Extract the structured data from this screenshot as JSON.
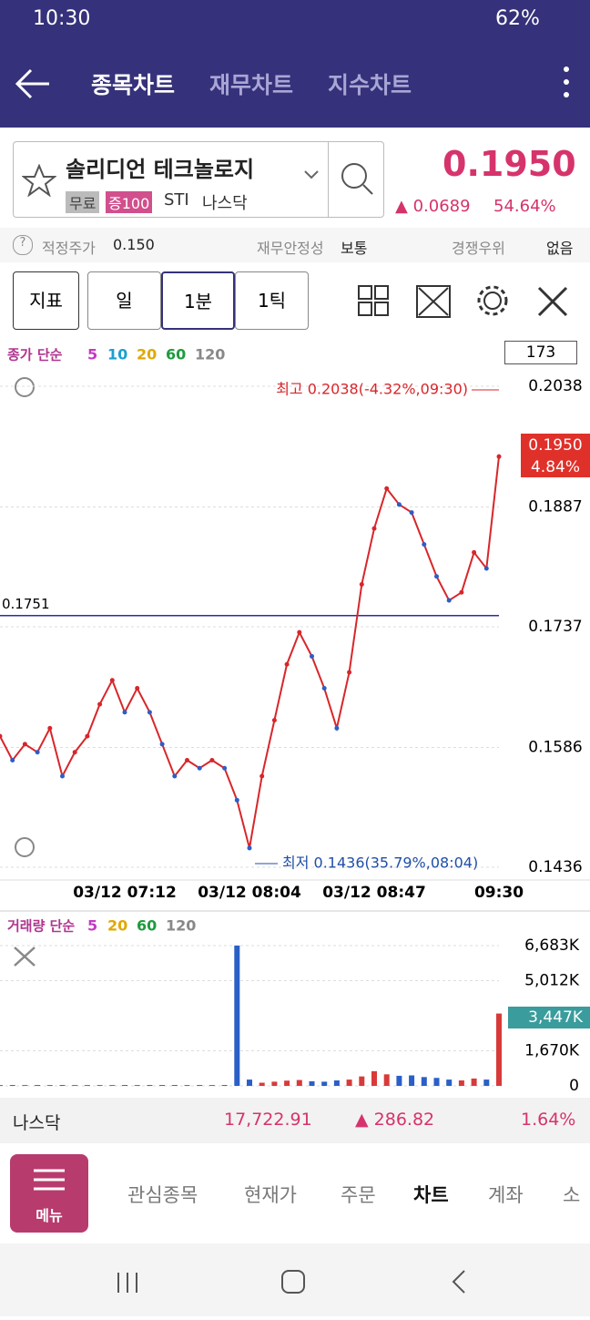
{
  "status_bar": {
    "time": "10:30",
    "battery": "62%"
  },
  "tabs": {
    "active": "종목차트",
    "items": [
      "재무차트",
      "지수차트"
    ]
  },
  "stock": {
    "name": "솔리디언 테크놀로지",
    "tags": [
      "무료",
      "증100"
    ],
    "code": "STI",
    "market": "나스닥",
    "price": "0.1950",
    "change": "0.0689",
    "change_pct": "54.64%"
  },
  "info_row": {
    "fair_price_label": "적정주가",
    "fair_price": "0.150",
    "stability_label": "재무안정성",
    "stability": "보통",
    "moat_label": "경쟁우위",
    "moat": "없음"
  },
  "toolbar": {
    "indicator": "지표",
    "periods": [
      "일",
      "1분",
      "1틱"
    ]
  },
  "price_chart": {
    "type": "line",
    "legend_title": "종가 단순",
    "ma_periods": [
      "5",
      "10",
      "20",
      "60",
      "120"
    ],
    "ma_colors": [
      "#c23bc2",
      "#1a9fd0",
      "#e0a800",
      "#1f9a3e",
      "#888888"
    ],
    "count": "173",
    "high_label": "최고 0.2038(-4.32%,09:30)",
    "low_label": "최저 0.1436(35.79%,08:04)",
    "current_tag": "0.1950",
    "current_pct": "4.84%",
    "ref_line": 0.1751,
    "categories": [
      null,
      null,
      null,
      null,
      null,
      null,
      null,
      null,
      null,
      null,
      "03/12 07:12",
      null,
      null,
      null,
      null,
      null,
      null,
      null,
      null,
      null,
      "03/12 08:04",
      null,
      null,
      null,
      null,
      null,
      null,
      null,
      null,
      null,
      "03/12 08:47",
      null,
      null,
      null,
      null,
      null,
      null,
      null,
      null,
      null,
      "09:30"
    ],
    "values": [
      0.16,
      0.157,
      0.159,
      0.158,
      0.161,
      0.155,
      0.158,
      0.16,
      0.164,
      0.167,
      0.163,
      0.166,
      0.163,
      0.159,
      0.155,
      0.157,
      0.156,
      0.157,
      0.156,
      0.152,
      0.146,
      0.155,
      0.162,
      0.169,
      0.173,
      0.17,
      0.166,
      0.161,
      0.168,
      0.179,
      0.186,
      0.191,
      0.189,
      0.188,
      0.184,
      0.18,
      0.177,
      0.178,
      0.183,
      0.181,
      0.195
    ],
    "color": "#d8262a",
    "ylim": [
      0.1436,
      0.2038
    ],
    "yticks": [
      0.2038,
      0.1887,
      0.1737,
      0.1586,
      0.1436
    ],
    "grid": true
  },
  "volume_chart": {
    "type": "bar",
    "legend_title": "거래량 단순",
    "ma_periods": [
      "5",
      "20",
      "60",
      "120"
    ],
    "ma_colors": [
      "#c23bc2",
      "#e0a800",
      "#1f9a3e",
      "#888888"
    ],
    "current_tag": "3,447K",
    "values": [
      40000,
      40000,
      40000,
      40000,
      40000,
      40000,
      40000,
      40000,
      40000,
      40000,
      40000,
      40000,
      40000,
      40000,
      40000,
      40000,
      40000,
      40000,
      40000,
      6683000,
      300000,
      150000,
      200000,
      250000,
      280000,
      220000,
      200000,
      260000,
      300000,
      450000,
      700000,
      550000,
      480000,
      500000,
      420000,
      380000,
      300000,
      260000,
      350000,
      300000,
      3447000
    ],
    "color": "#d83a3a",
    "ylim": [
      0,
      6683000
    ],
    "yticks": [
      {
        "value": 6683000,
        "label": "6,683K"
      },
      {
        "value": 5012000,
        "label": "5,012K"
      },
      {
        "value": 1670000,
        "label": "1,670K"
      },
      0
    ],
    "grid": true
  },
  "index_bar": {
    "name": "나스닥",
    "value": "17,722.91",
    "change": "286.82",
    "change_pct": "1.64%"
  },
  "bottom_nav": {
    "menu": "메뉴",
    "items": [
      "관심종목",
      "현재가",
      "주문",
      "차트",
      "계좌",
      "소"
    ]
  }
}
